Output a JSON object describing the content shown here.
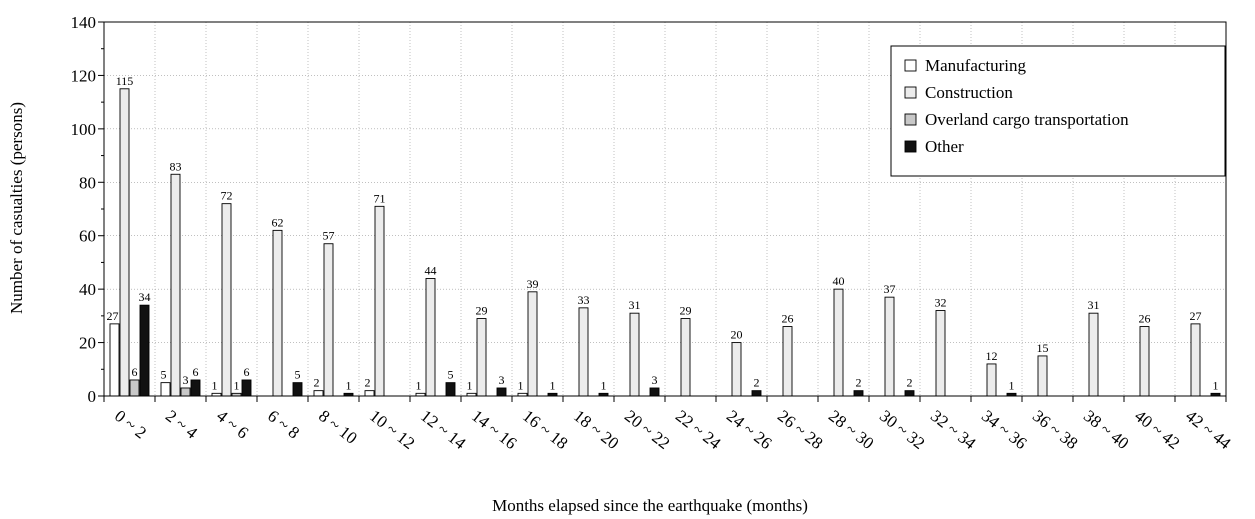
{
  "chart_data": {
    "type": "bar",
    "xlabel": "Months elapsed since the earthquake (months)",
    "ylabel": "Number of casualties (persons)",
    "ylim": [
      0,
      140
    ],
    "yticks": [
      0,
      20,
      40,
      60,
      80,
      100,
      120,
      140
    ],
    "grid": true,
    "legend_position": "top-right",
    "categories": [
      "0 ~ 2",
      "2 ~ 4",
      "4 ~ 6",
      "6 ~ 8",
      "8 ~ 10",
      "10 ~ 12",
      "12 ~ 14",
      "14 ~ 16",
      "16 ~ 18",
      "18 ~ 20",
      "20 ~ 22",
      "22 ~ 24",
      "24 ~ 26",
      "26 ~ 28",
      "28 ~ 30",
      "30 ~ 32",
      "32 ~ 34",
      "34 ~ 36",
      "36 ~ 38",
      "38 ~ 40",
      "40 ~ 42",
      "42 ~ 44"
    ],
    "series": [
      {
        "name": "Manufacturing",
        "color": "#ffffff",
        "values": [
          27,
          5,
          1,
          0,
          2,
          2,
          1,
          1,
          1,
          0,
          0,
          0,
          0,
          0,
          0,
          0,
          0,
          0,
          0,
          0,
          0,
          0
        ],
        "labels": [
          "27",
          "5",
          "1",
          "",
          "2",
          "2",
          "1",
          "1",
          "1",
          "",
          "",
          "",
          "",
          "",
          "",
          "",
          "",
          "",
          "",
          "",
          "",
          ""
        ]
      },
      {
        "name": "Construction",
        "color": "#ececec",
        "values": [
          115,
          83,
          72,
          62,
          57,
          71,
          44,
          29,
          39,
          33,
          31,
          29,
          20,
          26,
          40,
          37,
          32,
          12,
          15,
          31,
          26,
          27
        ],
        "labels": [
          "115",
          "83",
          "72",
          "62",
          "57",
          "71",
          "44",
          "29",
          "39",
          "33",
          "31",
          "29",
          "20",
          "26",
          "40",
          "37",
          "32",
          "12",
          "15",
          "31",
          "26",
          "27"
        ]
      },
      {
        "name": "Overland cargo transportation",
        "color": "#c8c8c8",
        "values": [
          6,
          3,
          1,
          0,
          0,
          0,
          0,
          0,
          0,
          0,
          0,
          0,
          0,
          0,
          0,
          0,
          0,
          0,
          0,
          0,
          0,
          0
        ],
        "labels": [
          "6",
          "3",
          "1",
          "",
          "",
          "",
          "",
          "",
          "",
          "",
          "",
          "",
          "",
          "",
          "",
          "",
          "",
          "",
          "",
          "",
          "",
          ""
        ]
      },
      {
        "name": "Other",
        "color": "#111111",
        "values": [
          34,
          6,
          6,
          5,
          1,
          0,
          5,
          3,
          1,
          1,
          3,
          0,
          2,
          0,
          2,
          2,
          0,
          1,
          0,
          0,
          0,
          1
        ],
        "labels": [
          "34",
          "6",
          "6",
          "5",
          "1",
          "",
          "5",
          "3",
          "1",
          "1",
          "3",
          "",
          "2",
          "",
          "2",
          "2",
          "",
          "1",
          "",
          "",
          "",
          "1"
        ]
      }
    ]
  }
}
